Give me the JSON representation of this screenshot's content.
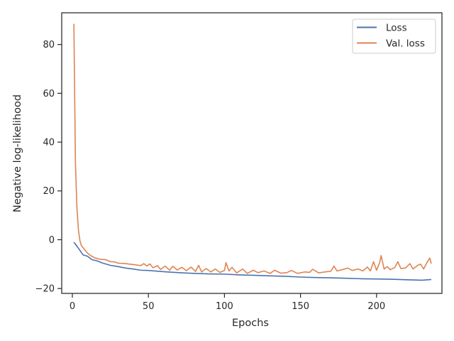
{
  "chart_data": {
    "type": "line",
    "title": "",
    "xlabel": "Epochs",
    "ylabel": "Negative log-likelihood",
    "xlim": [
      -7,
      243
    ],
    "ylim": [
      -22,
      93
    ],
    "xticks": [
      0,
      50,
      100,
      150,
      200
    ],
    "yticks": [
      -20,
      0,
      20,
      40,
      60,
      80
    ],
    "grid": false,
    "legend_position": "top-right",
    "series": [
      {
        "name": "Loss",
        "color": "#4c72b0",
        "points": [
          [
            1,
            -1
          ],
          [
            4,
            -3.5
          ],
          [
            7,
            -6.2
          ],
          [
            10,
            -6.8
          ],
          [
            13,
            -8.2
          ],
          [
            16,
            -8.6
          ],
          [
            20,
            -9.6
          ],
          [
            25,
            -10.5
          ],
          [
            30,
            -11
          ],
          [
            35,
            -11.6
          ],
          [
            40,
            -12
          ],
          [
            45,
            -12.5
          ],
          [
            50,
            -12.6
          ],
          [
            60,
            -13.1
          ],
          [
            70,
            -13.5
          ],
          [
            80,
            -13.8
          ],
          [
            90,
            -14
          ],
          [
            100,
            -14.1
          ],
          [
            110,
            -14.4
          ],
          [
            120,
            -14.6
          ],
          [
            130,
            -14.8
          ],
          [
            140,
            -15
          ],
          [
            150,
            -15.3
          ],
          [
            160,
            -15.5
          ],
          [
            170,
            -15.6
          ],
          [
            180,
            -15.8
          ],
          [
            190,
            -16
          ],
          [
            200,
            -16.1
          ],
          [
            210,
            -16.2
          ],
          [
            220,
            -16.4
          ],
          [
            230,
            -16.6
          ],
          [
            236,
            -16.3
          ]
        ]
      },
      {
        "name": "Val. loss",
        "color": "#dd8452",
        "points": [
          [
            1,
            88.5
          ],
          [
            2,
            32
          ],
          [
            3,
            13
          ],
          [
            4,
            4
          ],
          [
            5,
            -0.5
          ],
          [
            6,
            -2.5
          ],
          [
            8,
            -4
          ],
          [
            10,
            -5.5
          ],
          [
            12,
            -6.5
          ],
          [
            15,
            -7.5
          ],
          [
            18,
            -8
          ],
          [
            22,
            -8.2
          ],
          [
            25,
            -9
          ],
          [
            28,
            -9.1
          ],
          [
            30,
            -9.6
          ],
          [
            35,
            -9.8
          ],
          [
            40,
            -10.2
          ],
          [
            45,
            -10.6
          ],
          [
            47,
            -9.8
          ],
          [
            49,
            -10.8
          ],
          [
            51,
            -9.9
          ],
          [
            53,
            -11.5
          ],
          [
            56,
            -10.6
          ],
          [
            58,
            -12.2
          ],
          [
            61,
            -10.8
          ],
          [
            64,
            -12.5
          ],
          [
            66,
            -10.9
          ],
          [
            69,
            -12.4
          ],
          [
            72,
            -11.3
          ],
          [
            75,
            -12.7
          ],
          [
            78,
            -11.2
          ],
          [
            81,
            -13
          ],
          [
            83,
            -10.5
          ],
          [
            85,
            -13.2
          ],
          [
            88,
            -11.8
          ],
          [
            91,
            -13.2
          ],
          [
            94,
            -12
          ],
          [
            97,
            -13.4
          ],
          [
            100,
            -12.6
          ],
          [
            101,
            -9.4
          ],
          [
            103,
            -12.8
          ],
          [
            105,
            -11.3
          ],
          [
            108,
            -13.6
          ],
          [
            112,
            -12
          ],
          [
            115,
            -13.8
          ],
          [
            119,
            -12.5
          ],
          [
            122,
            -13.5
          ],
          [
            126,
            -12.8
          ],
          [
            130,
            -13.8
          ],
          [
            133,
            -12.5
          ],
          [
            137,
            -13.7
          ],
          [
            141,
            -13.5
          ],
          [
            144,
            -12.6
          ],
          [
            148,
            -13.8
          ],
          [
            153,
            -13.2
          ],
          [
            156,
            -13.4
          ],
          [
            158,
            -12.1
          ],
          [
            162,
            -13.6
          ],
          [
            166,
            -13.2
          ],
          [
            170,
            -12.9
          ],
          [
            172,
            -10.8
          ],
          [
            174,
            -12.8
          ],
          [
            178,
            -12.2
          ],
          [
            181,
            -11.6
          ],
          [
            184,
            -12.6
          ],
          [
            188,
            -12
          ],
          [
            191,
            -12.8
          ],
          [
            194,
            -11.2
          ],
          [
            196,
            -12.8
          ],
          [
            198,
            -9
          ],
          [
            200,
            -12.5
          ],
          [
            202,
            -9.5
          ],
          [
            203,
            -6.5
          ],
          [
            205,
            -12
          ],
          [
            207,
            -11
          ],
          [
            209,
            -12.3
          ],
          [
            212,
            -11.4
          ],
          [
            214,
            -9
          ],
          [
            216,
            -11.8
          ],
          [
            219,
            -11.6
          ],
          [
            222,
            -9.8
          ],
          [
            224,
            -12
          ],
          [
            227,
            -10.5
          ],
          [
            229,
            -10
          ],
          [
            231,
            -12
          ],
          [
            233,
            -9.5
          ],
          [
            235,
            -7.5
          ],
          [
            236,
            -9.8
          ]
        ]
      }
    ]
  }
}
